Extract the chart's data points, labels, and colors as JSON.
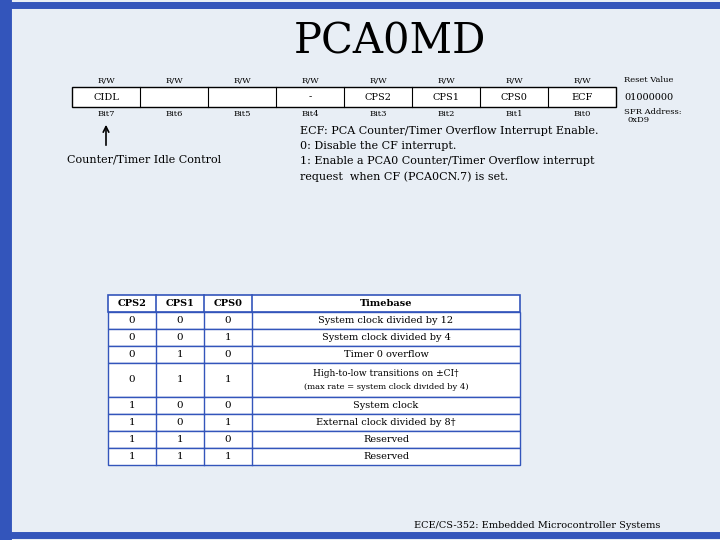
{
  "title": "PCA0MD",
  "background_color": "#e8eef5",
  "title_fontsize": 30,
  "register_row": {
    "rw_labels": [
      "R/W",
      "R/W",
      "R/W",
      "R/W",
      "R/W",
      "R/W",
      "R/W",
      "R/W"
    ],
    "bit_names": [
      "CIDL",
      "",
      "",
      "-",
      "CPS2",
      "CPS1",
      "CPS0",
      "ECF"
    ],
    "bit_labels": [
      "Bit7",
      "Bit6",
      "Bit5",
      "Bit4",
      "Bit3",
      "Bit2",
      "Bit1",
      "Bit0"
    ],
    "reset_value": "01000000",
    "sfr_address": "0xD9"
  },
  "arrow_label": "Counter/Timer Idle Control",
  "ecf_text_lines": [
    "ECF: PCA Counter/Timer Overflow Interrupt Enable.",
    "0: Disable the CF interrupt.",
    "1: Enable a PCA0 Counter/Timer Overflow interrupt",
    "request  when CF (PCA0CN.7) is set."
  ],
  "table_headers": [
    "CPS2",
    "CPS1",
    "CPS0",
    "Timebase"
  ],
  "table_rows": [
    [
      "0",
      "0",
      "0",
      "System clock divided by 12"
    ],
    [
      "0",
      "0",
      "1",
      "System clock divided by 4"
    ],
    [
      "0",
      "1",
      "0",
      "Timer 0 overflow"
    ],
    [
      "0",
      "1",
      "1",
      "High-to-low transitions on ±CI†\n(max rate = system clock divided by 4)"
    ],
    [
      "1",
      "0",
      "0",
      "System clock"
    ],
    [
      "1",
      "0",
      "1",
      "External clock divided by 8†"
    ],
    [
      "1",
      "1",
      "0",
      "Reserved"
    ],
    [
      "1",
      "1",
      "1",
      "Reserved"
    ]
  ],
  "footer": "ECE/CS-352: Embedded Microcontroller Systems",
  "border_color": "#3355bb",
  "table_border": "#000000"
}
